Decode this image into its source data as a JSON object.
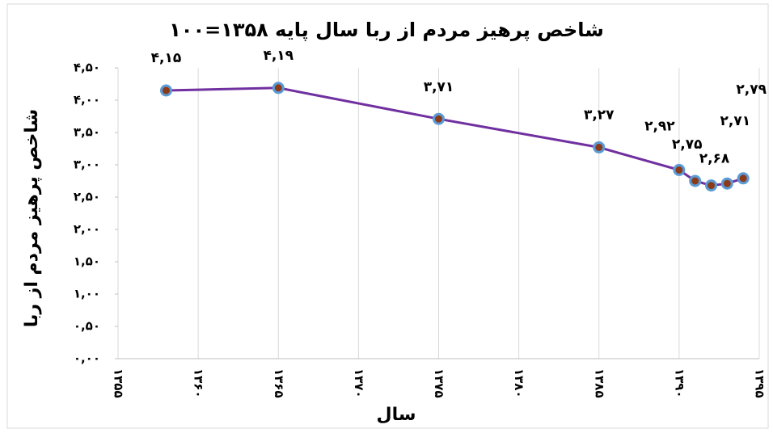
{
  "chart_data": {
    "type": "scatter",
    "title": "شاخص پرهیز مردم از ربا سال پایه ۱۳۵۸=۱۰۰",
    "x_label": "سال",
    "y_label": "شاخص پرهیز مردم از ربا",
    "x": [
      1358,
      1365,
      1375,
      1385,
      1390,
      1391,
      1392,
      1393,
      1394
    ],
    "values": [
      4.15,
      4.19,
      3.71,
      3.27,
      2.92,
      2.75,
      2.68,
      2.71,
      2.79
    ],
    "value_labels": [
      "۴,۱۵",
      "۴,۱۹",
      "۳,۷۱",
      "۳,۲۷",
      "۲,۹۲",
      "۲,۷۵",
      "۲,۶۸",
      "۲,۷۱",
      "۲,۷۹"
    ],
    "line_color": "#7030a0",
    "marker_color": "#8b3a1a",
    "marker_edge_color": "#5b9bd5",
    "xlim": [
      1355,
      1395
    ],
    "xticks": [
      {
        "value": 1355,
        "label": "۱۳۵۵"
      },
      {
        "value": 1360,
        "label": "۱۳۶۰"
      },
      {
        "value": 1365,
        "label": "۱۳۶۵"
      },
      {
        "value": 1370,
        "label": "۱۳۷۰"
      },
      {
        "value": 1375,
        "label": "۱۳۷۵"
      },
      {
        "value": 1380,
        "label": "۱۳۸۰"
      },
      {
        "value": 1385,
        "label": "۱۳۸۵"
      },
      {
        "value": 1390,
        "label": "۱۳۹۰"
      },
      {
        "value": 1395,
        "label": "۱۳۹۵"
      }
    ],
    "ylim": [
      0,
      4.5
    ],
    "yticks": [
      {
        "value": 0,
        "label": "۰,۰۰"
      },
      {
        "value": 0.5,
        "label": "۰,۵۰"
      },
      {
        "value": 1,
        "label": "۱,۰۰"
      },
      {
        "value": 1.5,
        "label": "۱,۵۰"
      },
      {
        "value": 2,
        "label": "۲,۰۰"
      },
      {
        "value": 2.5,
        "label": "۲,۵۰"
      },
      {
        "value": 3,
        "label": "۳,۰۰"
      },
      {
        "value": 3.5,
        "label": "۳,۵۰"
      },
      {
        "value": 4,
        "label": "۴,۰۰"
      },
      {
        "value": 4.5,
        "label": "۴,۵۰"
      }
    ],
    "grid": "x"
  }
}
